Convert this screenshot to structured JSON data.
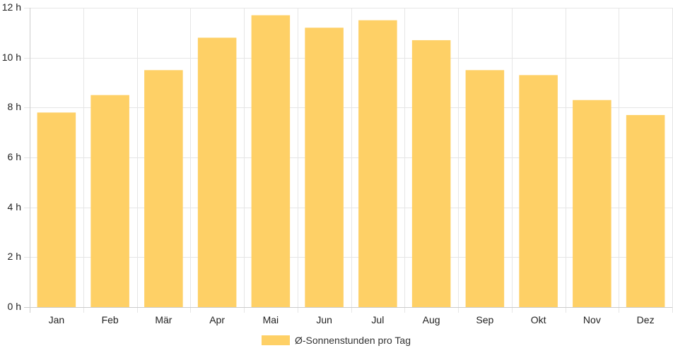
{
  "chart_data": {
    "type": "bar",
    "categories": [
      "Jan",
      "Feb",
      "Mär",
      "Apr",
      "Mai",
      "Jun",
      "Jul",
      "Aug",
      "Sep",
      "Okt",
      "Nov",
      "Dez"
    ],
    "series": [
      {
        "name": "Ø-Sonnenstunden pro Tag",
        "values": [
          7.8,
          8.5,
          9.5,
          10.8,
          11.7,
          11.2,
          11.5,
          10.7,
          9.5,
          9.3,
          8.3,
          7.7
        ],
        "color": "#fed066"
      }
    ],
    "title": "",
    "xlabel": "",
    "ylabel": "",
    "y_ticks": [
      "0 h",
      "2 h",
      "4 h",
      "6 h",
      "8 h",
      "10 h",
      "12 h"
    ],
    "ylim": [
      0,
      12
    ],
    "y_tick_step": 2,
    "grid": true,
    "legend_position": "bottom",
    "colors": {
      "grid": "#e6e6e6",
      "axis": "#cccccc",
      "text": "#222222"
    }
  }
}
